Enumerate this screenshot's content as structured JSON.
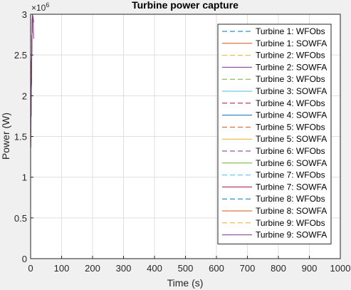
{
  "chart_data": {
    "type": "line",
    "title": "Turbine power capture",
    "xlabel": "Time (s)",
    "ylabel": "Power (W)",
    "xlim": [
      0,
      1000
    ],
    "ylim": [
      0,
      3000000
    ],
    "y_exponent_label": "×10",
    "y_exponent_power": "6",
    "xticks": [
      0,
      100,
      200,
      300,
      400,
      500,
      600,
      700,
      800,
      900,
      1000
    ],
    "yticks": [
      0,
      500000,
      1000000,
      1500000,
      2000000,
      2500000,
      3000000
    ],
    "ytick_labels": [
      "0",
      "0.5",
      "1",
      "1.5",
      "2",
      "2.5",
      "3"
    ],
    "grid": true,
    "legend_location": "top-right",
    "series": [
      {
        "name": "Turbine 1: WFObs",
        "color": "#0072bd",
        "dash": true,
        "x": [
          0,
          2,
          4,
          6,
          8,
          10
        ],
        "y": [
          1350000,
          2000000,
          2650000,
          3000000,
          2950000,
          2900000
        ]
      },
      {
        "name": "Turbine 1: SOWFA",
        "color": "#d95319",
        "dash": false,
        "x": [
          0,
          2,
          4,
          6,
          8,
          10
        ],
        "y": [
          1350000,
          2000000,
          2650000,
          3000000,
          2950000,
          2900000
        ]
      },
      {
        "name": "Turbine 2: WFObs",
        "color": "#edb120",
        "dash": true,
        "x": [
          0,
          2,
          4,
          6,
          8,
          10
        ],
        "y": [
          1350000,
          2000000,
          2650000,
          3000000,
          2950000,
          2900000
        ]
      },
      {
        "name": "Turbine 2: SOWFA",
        "color": "#7e2f8e",
        "dash": false,
        "x": [
          0,
          2,
          4,
          6,
          8,
          10
        ],
        "y": [
          1350000,
          2000000,
          2650000,
          3000000,
          2950000,
          2900000
        ]
      },
      {
        "name": "Turbine 3: WFObs",
        "color": "#77ac30",
        "dash": true,
        "x": [
          0,
          2,
          4,
          6,
          8,
          10
        ],
        "y": [
          1350000,
          2000000,
          2650000,
          3000000,
          2950000,
          2900000
        ]
      },
      {
        "name": "Turbine 3: SOWFA",
        "color": "#4dbeee",
        "dash": false,
        "x": [
          0,
          2,
          4,
          6,
          8,
          10
        ],
        "y": [
          1350000,
          2000000,
          2650000,
          3000000,
          2950000,
          2900000
        ]
      },
      {
        "name": "Turbine 4: WFObs",
        "color": "#a2142f",
        "dash": true,
        "x": [
          0,
          2,
          4,
          6,
          8,
          10
        ],
        "y": [
          1350000,
          2000000,
          2650000,
          3000000,
          2950000,
          2900000
        ]
      },
      {
        "name": "Turbine 4: SOWFA",
        "color": "#0072bd",
        "dash": false,
        "x": [
          0,
          2,
          4,
          6,
          8,
          10
        ],
        "y": [
          1350000,
          2000000,
          2650000,
          3000000,
          2950000,
          2900000
        ]
      },
      {
        "name": "Turbine 5: WFObs",
        "color": "#d95319",
        "dash": true,
        "x": [
          0,
          2,
          4,
          6,
          8,
          10
        ],
        "y": [
          1350000,
          2000000,
          2650000,
          3000000,
          2950000,
          2900000
        ]
      },
      {
        "name": "Turbine 5: SOWFA",
        "color": "#edb120",
        "dash": false,
        "x": [
          0,
          2,
          4,
          6,
          8,
          10
        ],
        "y": [
          1350000,
          2000000,
          2650000,
          3000000,
          2950000,
          2900000
        ]
      },
      {
        "name": "Turbine 6: WFObs",
        "color": "#7e2f8e",
        "dash": true,
        "x": [
          0,
          2,
          4,
          6,
          8,
          10
        ],
        "y": [
          1350000,
          2000000,
          2650000,
          3000000,
          2950000,
          2900000
        ]
      },
      {
        "name": "Turbine 6: SOWFA",
        "color": "#77ac30",
        "dash": false,
        "x": [
          0,
          2,
          4,
          6,
          8,
          10
        ],
        "y": [
          1350000,
          2000000,
          2650000,
          3000000,
          2950000,
          2900000
        ]
      },
      {
        "name": "Turbine 7: WFObs",
        "color": "#4dbeee",
        "dash": true,
        "x": [
          0,
          2,
          4,
          6,
          8,
          10
        ],
        "y": [
          1350000,
          2000000,
          2650000,
          3000000,
          2950000,
          2900000
        ]
      },
      {
        "name": "Turbine 7: SOWFA",
        "color": "#a2142f",
        "dash": false,
        "x": [
          0,
          2,
          4,
          6,
          8,
          10
        ],
        "y": [
          1350000,
          2000000,
          2650000,
          3000000,
          2950000,
          2900000
        ]
      },
      {
        "name": "Turbine 8: WFObs",
        "color": "#0072bd",
        "dash": true,
        "x": [
          0,
          2,
          4,
          6,
          8,
          10
        ],
        "y": [
          1350000,
          2000000,
          2650000,
          3000000,
          2950000,
          2900000
        ]
      },
      {
        "name": "Turbine 8: SOWFA",
        "color": "#d95319",
        "dash": false,
        "x": [
          0,
          2,
          4,
          6,
          8,
          10
        ],
        "y": [
          1350000,
          2000000,
          2650000,
          3000000,
          2950000,
          2900000
        ]
      },
      {
        "name": "Turbine 9: WFObs",
        "color": "#edb120",
        "dash": true,
        "x": [
          0,
          2,
          4,
          6,
          8,
          10
        ],
        "y": [
          1350000,
          2000000,
          2650000,
          3000000,
          2950000,
          2900000
        ]
      },
      {
        "name": "Turbine 9: SOWFA",
        "color": "#7e2f8e",
        "dash": false,
        "x": [
          0,
          2,
          4,
          6,
          8,
          10
        ],
        "y": [
          1350000,
          2000000,
          2650000,
          3000000,
          2950000,
          2700000
        ]
      }
    ]
  }
}
